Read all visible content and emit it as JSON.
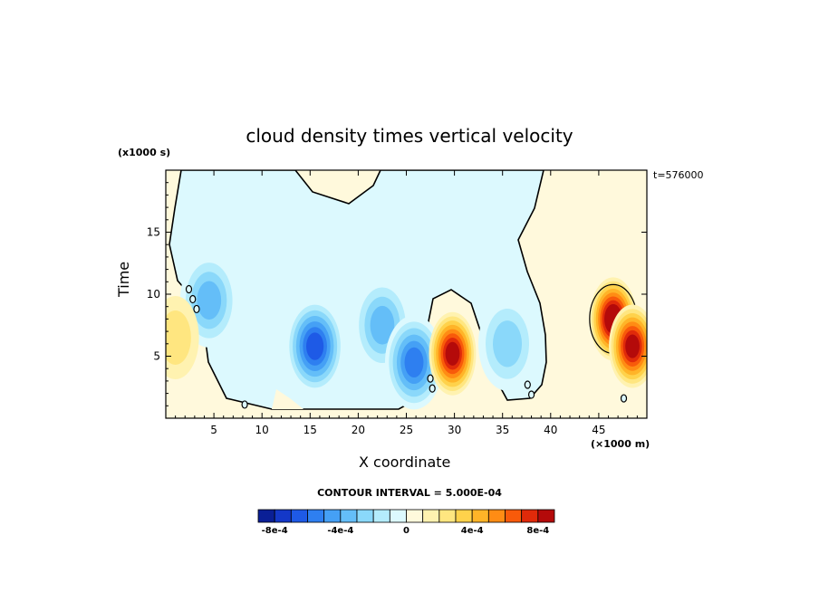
{
  "chart_data": {
    "type": "heatmap",
    "title": "cloud density times vertical velocity",
    "xlabel": "X coordinate",
    "ylabel": "Time",
    "x_unit": "(×1000 m)",
    "y_unit": "(x1000 s)",
    "time_label": "t=576000",
    "contour_interval_label": "CONTOUR INTERVAL = 5.000E-04",
    "xlim": [
      0,
      50
    ],
    "ylim": [
      0,
      20
    ],
    "x_ticks": [
      5,
      10,
      15,
      20,
      25,
      30,
      35,
      40,
      45
    ],
    "y_ticks": [
      5,
      10,
      15
    ],
    "colorbar": {
      "colors": [
        "#0a1f96",
        "#1438c8",
        "#1e5ae6",
        "#2e7ff0",
        "#45a0f5",
        "#64bef8",
        "#8ad8fa",
        "#b4ecfc",
        "#dcf9fe",
        "#fff9dc",
        "#fff2b0",
        "#ffe680",
        "#ffd24b",
        "#ffb428",
        "#ff8c14",
        "#f85a0a",
        "#e02a0a",
        "#b40a0a"
      ],
      "tick_labels": [
        "-8e-4",
        "-4e-4",
        "0",
        "4e-4",
        "8e-4"
      ],
      "tick_values": [
        -0.0008,
        -0.0004,
        0,
        0.0004,
        0.0008
      ]
    },
    "features": [
      {
        "kind": "negative-max",
        "x": 15.5,
        "y": 5.8,
        "value": -0.0007
      },
      {
        "kind": "negative",
        "x": 22.5,
        "y": 7.5,
        "value": -0.0004
      },
      {
        "kind": "negative",
        "x": 25.8,
        "y": 4.5,
        "value": -0.0006
      },
      {
        "kind": "negative",
        "x": 4.5,
        "y": 9.5,
        "value": -0.0004
      },
      {
        "kind": "negative",
        "x": 35.5,
        "y": 6.0,
        "value": -0.0003
      },
      {
        "kind": "positive",
        "x": 29.8,
        "y": 5.2,
        "value": 0.0008
      },
      {
        "kind": "positive-max",
        "x": 46.5,
        "y": 8.0,
        "value": 0.0009
      },
      {
        "kind": "positive",
        "x": 48.5,
        "y": 5.8,
        "value": 0.0008
      },
      {
        "kind": "positive",
        "x": 1.0,
        "y": 6.5,
        "value": 0.0002
      }
    ]
  }
}
